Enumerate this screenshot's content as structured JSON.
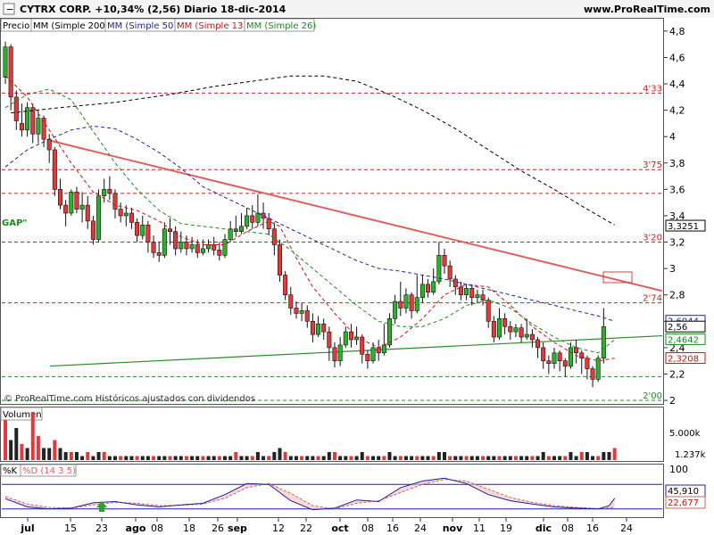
{
  "header": {
    "title": "CYTRX CORP.  +10,34% (2,56)  Diario  18-dic-2014",
    "site": "www.ProRealTime.com"
  },
  "legend": [
    {
      "label": "Precio",
      "color": "#000000"
    },
    {
      "label": "MM (Simple 200)",
      "color": "#000000"
    },
    {
      "label": "MM (Simple 50)",
      "color": "#1f1fa8"
    },
    {
      "label": "MM (Simple 13)",
      "color": "#d01010"
    },
    {
      "label": "MM (Simple 26)",
      "color": "#1a8a1a"
    }
  ],
  "annotations": {
    "gap_label": "GAP\"",
    "copyright": "© ProRealTime.com  Históricos ajustados con dividendos"
  },
  "volume_panel": {
    "title": "Volumen",
    "ticks": [
      "5.000k",
      "1.237k"
    ]
  },
  "stoch_panel": {
    "title_k": "%K",
    "title_d": "%D (14 3 5)",
    "ticks": [
      "100",
      "45,910",
      "22,677"
    ]
  },
  "chart_data": {
    "type": "candlestick",
    "price_axis": {
      "ticks": [
        "4,8",
        "4,6",
        "4,4",
        "4,2",
        "4",
        "3,8",
        "3,6",
        "3,4",
        "3,2",
        "3",
        "2,8",
        "2,6",
        "2,4",
        "2,2",
        "2"
      ],
      "ylim": [
        1.98,
        4.86
      ],
      "marker_labels": [
        {
          "text": "3,3251",
          "value": 3.325,
          "color": "#000000"
        },
        {
          "text": "2,6044",
          "value": 2.604,
          "color": "#1f1fa8"
        },
        {
          "text": "2,56",
          "value": 2.56,
          "color": "#000000"
        },
        {
          "text": "2,4642",
          "value": 2.464,
          "color": "#1a8a1a"
        },
        {
          "text": "2,3208",
          "value": 2.321,
          "color": "#d01010"
        }
      ]
    },
    "x_ticks": [
      "jul",
      "15",
      "23",
      "ago",
      "08",
      "18",
      "26",
      "sep",
      "12",
      "22",
      "oct",
      "08",
      "16",
      "24",
      "nov",
      "11",
      "19",
      "dic",
      "08",
      "16",
      "24"
    ],
    "support_resistance": [
      {
        "value": 4.33,
        "label": "4'33"
      },
      {
        "value": 3.75,
        "label": "3'75"
      },
      {
        "value": 3.57,
        "label": ""
      },
      {
        "value": 3.2,
        "label": "3'20"
      },
      {
        "value": 2.74,
        "label": "2'74"
      },
      {
        "value": 2.18,
        "label": ""
      },
      {
        "value": 2.0,
        "label": "2'00"
      }
    ],
    "trendlines": [
      {
        "name": "red",
        "color": "#e06060",
        "points": [
          [
            0,
            3.97
          ],
          [
            111,
            2.83
          ]
        ]
      },
      {
        "name": "green",
        "color": "#2a8a2a",
        "points": [
          [
            0,
            2.26
          ],
          [
            111,
            2.49
          ]
        ]
      }
    ],
    "candles": [
      [
        4.45,
        4.68,
        4.72,
        4.4
      ],
      [
        4.68,
        4.3,
        4.7,
        4.2
      ],
      [
        4.3,
        4.12,
        4.35,
        4.05
      ],
      [
        4.1,
        4.05,
        4.25,
        4.0
      ],
      [
        4.05,
        4.22,
        4.26,
        4.0
      ],
      [
        4.22,
        4.02,
        4.25,
        3.95
      ],
      [
        4.02,
        4.14,
        4.2,
        3.95
      ],
      [
        4.14,
        3.98,
        4.16,
        3.92
      ],
      [
        3.98,
        3.9,
        4.02,
        3.8
      ],
      [
        3.9,
        3.6,
        3.92,
        3.55
      ],
      [
        3.6,
        3.48,
        3.68,
        3.45
      ],
      [
        3.48,
        3.42,
        3.52,
        3.32
      ],
      [
        3.42,
        3.58,
        3.6,
        3.4
      ],
      [
        3.58,
        3.45,
        3.62,
        3.42
      ],
      [
        3.45,
        3.48,
        3.58,
        3.35
      ],
      [
        3.48,
        3.36,
        3.55,
        3.3
      ],
      [
        3.36,
        3.22,
        3.4,
        3.18
      ],
      [
        3.22,
        3.55,
        3.6,
        3.2
      ],
      [
        3.55,
        3.6,
        3.68,
        3.5
      ],
      [
        3.6,
        3.57,
        3.7,
        3.52
      ],
      [
        3.57,
        3.45,
        3.6,
        3.38
      ],
      [
        3.45,
        3.4,
        3.5,
        3.35
      ],
      [
        3.4,
        3.42,
        3.48,
        3.32
      ],
      [
        3.42,
        3.35,
        3.46,
        3.3
      ],
      [
        3.35,
        3.25,
        3.38,
        3.2
      ],
      [
        3.25,
        3.33,
        3.4,
        3.22
      ],
      [
        3.33,
        3.2,
        3.36,
        3.12
      ],
      [
        3.2,
        3.12,
        3.25,
        3.08
      ],
      [
        3.12,
        3.1,
        3.2,
        3.05
      ],
      [
        3.1,
        3.3,
        3.35,
        3.08
      ],
      [
        3.3,
        3.28,
        3.38,
        3.18
      ],
      [
        3.28,
        3.15,
        3.32,
        3.1
      ],
      [
        3.15,
        3.2,
        3.28,
        3.12
      ],
      [
        3.2,
        3.15,
        3.25,
        3.1
      ],
      [
        3.15,
        3.18,
        3.24,
        3.12
      ],
      [
        3.18,
        3.12,
        3.22,
        3.08
      ],
      [
        3.12,
        3.15,
        3.22,
        3.1
      ],
      [
        3.15,
        3.18,
        3.22,
        3.12
      ],
      [
        3.18,
        3.14,
        3.24,
        3.1
      ],
      [
        3.14,
        3.1,
        3.2,
        3.06
      ],
      [
        3.1,
        3.22,
        3.26,
        3.08
      ],
      [
        3.22,
        3.3,
        3.36,
        3.2
      ],
      [
        3.3,
        3.28,
        3.4,
        3.24
      ],
      [
        3.28,
        3.32,
        3.42,
        3.26
      ],
      [
        3.32,
        3.4,
        3.46,
        3.3
      ],
      [
        3.4,
        3.35,
        3.48,
        3.3
      ],
      [
        3.35,
        3.42,
        3.56,
        3.32
      ],
      [
        3.42,
        3.38,
        3.5,
        3.3
      ],
      [
        3.38,
        3.3,
        3.42,
        3.25
      ],
      [
        3.3,
        3.18,
        3.35,
        3.1
      ],
      [
        3.18,
        2.95,
        3.22,
        2.9
      ],
      [
        2.95,
        2.8,
        2.98,
        2.76
      ],
      [
        2.8,
        2.7,
        2.86,
        2.65
      ],
      [
        2.7,
        2.66,
        2.75,
        2.62
      ],
      [
        2.66,
        2.68,
        2.74,
        2.6
      ],
      [
        2.68,
        2.6,
        2.72,
        2.55
      ],
      [
        2.6,
        2.5,
        2.66,
        2.44
      ],
      [
        2.5,
        2.58,
        2.64,
        2.48
      ],
      [
        2.58,
        2.52,
        2.62,
        2.46
      ],
      [
        2.52,
        2.4,
        2.56,
        2.3
      ],
      [
        2.4,
        2.3,
        2.44,
        2.25
      ],
      [
        2.3,
        2.42,
        2.48,
        2.26
      ],
      [
        2.42,
        2.52,
        2.56,
        2.4
      ],
      [
        2.52,
        2.46,
        2.58,
        2.4
      ],
      [
        2.46,
        2.48,
        2.56,
        2.42
      ],
      [
        2.48,
        2.35,
        2.5,
        2.28
      ],
      [
        2.35,
        2.3,
        2.38,
        2.24
      ],
      [
        2.3,
        2.4,
        2.44,
        2.28
      ],
      [
        2.4,
        2.36,
        2.46,
        2.3
      ],
      [
        2.36,
        2.42,
        2.58,
        2.34
      ],
      [
        2.42,
        2.62,
        2.66,
        2.4
      ],
      [
        2.62,
        2.75,
        2.8,
        2.58
      ],
      [
        2.75,
        2.7,
        2.9,
        2.64
      ],
      [
        2.7,
        2.8,
        2.85,
        2.66
      ],
      [
        2.8,
        2.68,
        2.82,
        2.62
      ],
      [
        2.68,
        2.78,
        2.95,
        2.66
      ],
      [
        2.78,
        2.88,
        2.95,
        2.74
      ],
      [
        2.88,
        2.82,
        2.92,
        2.78
      ],
      [
        2.82,
        2.9,
        3.0,
        2.8
      ],
      [
        2.9,
        3.1,
        3.2,
        2.88
      ],
      [
        3.1,
        3.02,
        3.15,
        2.96
      ],
      [
        3.02,
        2.92,
        3.06,
        2.86
      ],
      [
        2.92,
        2.86,
        2.95,
        2.8
      ],
      [
        2.86,
        2.8,
        2.9,
        2.76
      ],
      [
        2.8,
        2.85,
        2.88,
        2.76
      ],
      [
        2.85,
        2.78,
        2.88,
        2.72
      ],
      [
        2.78,
        2.8,
        2.84,
        2.74
      ],
      [
        2.8,
        2.76,
        2.84,
        2.72
      ],
      [
        2.76,
        2.6,
        2.78,
        2.55
      ],
      [
        2.6,
        2.48,
        2.64,
        2.44
      ],
      [
        2.48,
        2.62,
        2.7,
        2.46
      ],
      [
        2.62,
        2.56,
        2.66,
        2.5
      ],
      [
        2.56,
        2.52,
        2.6,
        2.46
      ],
      [
        2.52,
        2.55,
        2.58,
        2.48
      ],
      [
        2.55,
        2.48,
        2.58,
        2.44
      ],
      [
        2.48,
        2.5,
        2.62,
        2.46
      ],
      [
        2.5,
        2.46,
        2.54,
        2.4
      ],
      [
        2.46,
        2.4,
        2.48,
        2.32
      ],
      [
        2.4,
        2.3,
        2.44,
        2.24
      ],
      [
        2.3,
        2.28,
        2.34,
        2.2
      ],
      [
        2.28,
        2.36,
        2.4,
        2.24
      ],
      [
        2.36,
        2.3,
        2.38,
        2.22
      ],
      [
        2.3,
        2.26,
        2.32,
        2.18
      ],
      [
        2.26,
        2.4,
        2.44,
        2.24
      ],
      [
        2.4,
        2.36,
        2.46,
        2.28
      ],
      [
        2.36,
        2.32,
        2.38,
        2.2
      ],
      [
        2.32,
        2.24,
        2.34,
        2.16
      ],
      [
        2.24,
        2.16,
        2.26,
        2.1
      ],
      [
        2.16,
        2.32,
        2.34,
        2.14
      ],
      [
        2.32,
        2.56,
        2.7,
        2.28
      ]
    ],
    "sma200": [
      [
        1,
        4.18
      ],
      [
        10,
        4.22
      ],
      [
        20,
        4.26
      ],
      [
        30,
        4.32
      ],
      [
        38,
        4.38
      ],
      [
        45,
        4.42
      ],
      [
        52,
        4.46
      ],
      [
        58,
        4.46
      ],
      [
        64,
        4.42
      ],
      [
        70,
        4.32
      ],
      [
        76,
        4.2
      ],
      [
        82,
        4.06
      ],
      [
        88,
        3.9
      ],
      [
        94,
        3.74
      ],
      [
        100,
        3.6
      ],
      [
        106,
        3.45
      ],
      [
        111,
        3.33
      ]
    ],
    "sma50": [
      [
        0,
        3.77
      ],
      [
        4,
        3.9
      ],
      [
        8,
        3.98
      ],
      [
        12,
        4.05
      ],
      [
        16,
        4.08
      ],
      [
        20,
        4.06
      ],
      [
        24,
        3.98
      ],
      [
        28,
        3.88
      ],
      [
        32,
        3.76
      ],
      [
        36,
        3.62
      ],
      [
        40,
        3.54
      ],
      [
        44,
        3.46
      ],
      [
        48,
        3.38
      ],
      [
        52,
        3.3
      ],
      [
        56,
        3.22
      ],
      [
        60,
        3.14
      ],
      [
        64,
        3.06
      ],
      [
        68,
        3.0
      ],
      [
        72,
        2.98
      ],
      [
        76,
        2.95
      ],
      [
        80,
        2.92
      ],
      [
        84,
        2.88
      ],
      [
        88,
        2.84
      ],
      [
        92,
        2.8
      ],
      [
        96,
        2.76
      ],
      [
        100,
        2.72
      ],
      [
        104,
        2.68
      ],
      [
        108,
        2.64
      ],
      [
        111,
        2.6
      ]
    ],
    "sma13": [
      [
        0,
        4.46
      ],
      [
        4,
        4.3
      ],
      [
        8,
        4.05
      ],
      [
        12,
        3.8
      ],
      [
        16,
        3.58
      ],
      [
        20,
        3.48
      ],
      [
        24,
        3.44
      ],
      [
        28,
        3.36
      ],
      [
        32,
        3.24
      ],
      [
        36,
        3.18
      ],
      [
        40,
        3.18
      ],
      [
        44,
        3.28
      ],
      [
        48,
        3.36
      ],
      [
        50,
        3.32
      ],
      [
        53,
        3.08
      ],
      [
        56,
        2.86
      ],
      [
        60,
        2.66
      ],
      [
        64,
        2.48
      ],
      [
        68,
        2.4
      ],
      [
        72,
        2.48
      ],
      [
        76,
        2.62
      ],
      [
        80,
        2.8
      ],
      [
        84,
        2.88
      ],
      [
        88,
        2.86
      ],
      [
        92,
        2.72
      ],
      [
        96,
        2.56
      ],
      [
        100,
        2.44
      ],
      [
        104,
        2.34
      ],
      [
        108,
        2.3
      ],
      [
        111,
        2.32
      ]
    ],
    "sma26": [
      [
        0,
        4.22
      ],
      [
        4,
        4.32
      ],
      [
        8,
        4.36
      ],
      [
        12,
        4.28
      ],
      [
        16,
        4.04
      ],
      [
        20,
        3.8
      ],
      [
        24,
        3.6
      ],
      [
        28,
        3.44
      ],
      [
        32,
        3.34
      ],
      [
        36,
        3.32
      ],
      [
        40,
        3.3
      ],
      [
        44,
        3.28
      ],
      [
        48,
        3.26
      ],
      [
        52,
        3.14
      ],
      [
        56,
        3.0
      ],
      [
        60,
        2.86
      ],
      [
        64,
        2.72
      ],
      [
        68,
        2.6
      ],
      [
        72,
        2.56
      ],
      [
        76,
        2.56
      ],
      [
        80,
        2.62
      ],
      [
        84,
        2.72
      ],
      [
        88,
        2.76
      ],
      [
        92,
        2.7
      ],
      [
        96,
        2.58
      ],
      [
        100,
        2.48
      ],
      [
        104,
        2.4
      ],
      [
        108,
        2.36
      ],
      [
        111,
        2.46
      ]
    ],
    "volume": [
      10,
      5,
      8,
      4,
      3,
      12,
      6,
      3,
      3,
      5,
      3,
      2,
      2,
      2,
      1,
      2,
      1,
      2,
      2,
      1,
      1,
      1,
      1,
      1,
      1,
      1,
      1,
      1,
      1,
      1,
      1,
      1,
      1,
      1,
      1,
      1,
      1,
      1,
      1,
      1,
      1,
      1,
      2,
      1,
      1,
      1,
      2,
      1,
      1,
      2,
      3,
      2,
      1,
      1,
      1,
      1,
      1,
      1,
      1,
      2,
      2,
      1,
      1,
      1,
      1,
      2,
      1,
      1,
      1,
      1,
      2,
      1,
      1,
      1,
      1,
      1,
      1,
      1,
      1,
      2,
      2,
      1,
      1,
      1,
      1,
      1,
      1,
      1,
      1,
      1,
      1,
      1,
      1,
      1,
      1,
      1,
      1,
      1,
      2,
      1,
      1,
      1,
      1,
      2,
      1,
      2,
      2,
      1,
      1,
      2,
      2,
      3
    ],
    "stoch_k": [
      [
        0,
        45
      ],
      [
        4,
        25
      ],
      [
        8,
        20
      ],
      [
        12,
        22
      ],
      [
        16,
        35
      ],
      [
        20,
        38
      ],
      [
        24,
        30
      ],
      [
        28,
        25
      ],
      [
        32,
        30
      ],
      [
        36,
        34
      ],
      [
        40,
        55
      ],
      [
        44,
        82
      ],
      [
        48,
        80
      ],
      [
        52,
        40
      ],
      [
        56,
        18
      ],
      [
        60,
        22
      ],
      [
        64,
        42
      ],
      [
        68,
        38
      ],
      [
        72,
        72
      ],
      [
        76,
        88
      ],
      [
        80,
        95
      ],
      [
        84,
        82
      ],
      [
        88,
        55
      ],
      [
        92,
        40
      ],
      [
        96,
        32
      ],
      [
        100,
        25
      ],
      [
        104,
        22
      ],
      [
        108,
        20
      ],
      [
        110,
        28
      ],
      [
        111,
        46
      ]
    ],
    "stoch_d": [
      [
        0,
        50
      ],
      [
        4,
        32
      ],
      [
        8,
        24
      ],
      [
        12,
        22
      ],
      [
        16,
        30
      ],
      [
        20,
        36
      ],
      [
        24,
        34
      ],
      [
        28,
        28
      ],
      [
        32,
        29
      ],
      [
        36,
        32
      ],
      [
        40,
        46
      ],
      [
        44,
        72
      ],
      [
        48,
        82
      ],
      [
        52,
        58
      ],
      [
        56,
        28
      ],
      [
        60,
        20
      ],
      [
        64,
        34
      ],
      [
        68,
        40
      ],
      [
        72,
        60
      ],
      [
        76,
        80
      ],
      [
        80,
        92
      ],
      [
        84,
        88
      ],
      [
        88,
        68
      ],
      [
        92,
        48
      ],
      [
        96,
        36
      ],
      [
        100,
        28
      ],
      [
        104,
        24
      ],
      [
        108,
        21
      ],
      [
        110,
        23
      ],
      [
        111,
        23
      ]
    ],
    "stoch_levels": [
      80,
      20
    ]
  }
}
